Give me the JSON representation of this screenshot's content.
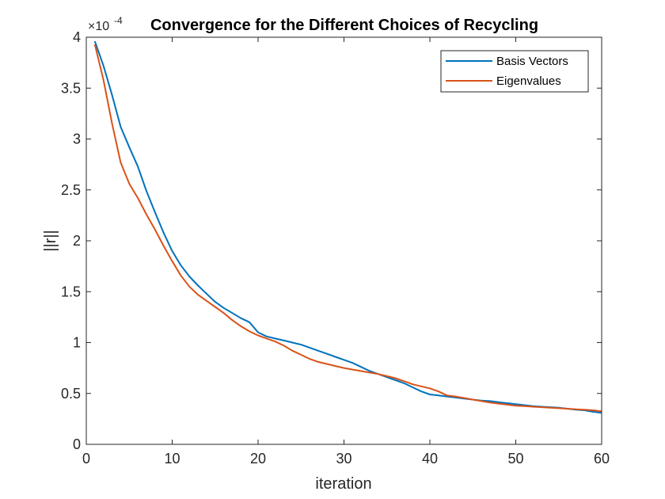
{
  "chart_data": {
    "type": "line",
    "title": "Convergence for the Different Choices of Recycling",
    "xlabel": "iteration",
    "ylabel": "||r||",
    "multiplier": {
      "base": "×10",
      "exponent": "-4"
    },
    "xlim": [
      0,
      60
    ],
    "ylim": [
      0,
      4
    ],
    "xticks": [
      0,
      10,
      20,
      30,
      40,
      50,
      60
    ],
    "yticks": [
      0,
      0.5,
      1,
      1.5,
      2,
      2.5,
      3,
      3.5,
      4
    ],
    "xtick_labels": [
      "0",
      "10",
      "20",
      "30",
      "40",
      "50",
      "60"
    ],
    "ytick_labels": [
      "0",
      "0.5",
      "1",
      "1.5",
      "2",
      "2.5",
      "3",
      "3.5",
      "4"
    ],
    "grid": false,
    "legend_position": "top-right",
    "series": [
      {
        "name": "Basis Vectors",
        "color": "#0072BD",
        "points": [
          [
            1,
            3.96
          ],
          [
            2,
            3.72
          ],
          [
            3,
            3.43
          ],
          [
            4,
            3.12
          ],
          [
            5,
            2.92
          ],
          [
            6,
            2.73
          ],
          [
            7,
            2.49
          ],
          [
            8,
            2.28
          ],
          [
            9,
            2.08
          ],
          [
            10,
            1.9
          ],
          [
            11,
            1.76
          ],
          [
            12,
            1.65
          ],
          [
            13,
            1.56
          ],
          [
            14,
            1.48
          ],
          [
            15,
            1.4
          ],
          [
            16,
            1.34
          ],
          [
            17,
            1.29
          ],
          [
            18,
            1.24
          ],
          [
            19,
            1.2
          ],
          [
            20,
            1.1
          ],
          [
            21,
            1.06
          ],
          [
            22,
            1.04
          ],
          [
            23,
            1.02
          ],
          [
            24,
            1.0
          ],
          [
            25,
            0.98
          ],
          [
            26,
            0.95
          ],
          [
            27,
            0.92
          ],
          [
            28,
            0.89
          ],
          [
            29,
            0.86
          ],
          [
            30,
            0.83
          ],
          [
            31,
            0.8
          ],
          [
            32,
            0.76
          ],
          [
            33,
            0.72
          ],
          [
            34,
            0.69
          ],
          [
            35,
            0.66
          ],
          [
            36,
            0.63
          ],
          [
            37,
            0.6
          ],
          [
            38,
            0.56
          ],
          [
            39,
            0.52
          ],
          [
            40,
            0.49
          ],
          [
            41,
            0.48
          ],
          [
            42,
            0.47
          ],
          [
            43,
            0.46
          ],
          [
            44,
            0.45
          ],
          [
            45,
            0.44
          ],
          [
            46,
            0.43
          ],
          [
            47,
            0.425
          ],
          [
            48,
            0.415
          ],
          [
            49,
            0.405
          ],
          [
            50,
            0.395
          ],
          [
            51,
            0.385
          ],
          [
            52,
            0.375
          ],
          [
            53,
            0.37
          ],
          [
            54,
            0.365
          ],
          [
            55,
            0.36
          ],
          [
            56,
            0.35
          ],
          [
            57,
            0.34
          ],
          [
            58,
            0.335
          ],
          [
            59,
            0.32
          ],
          [
            60,
            0.31
          ]
        ]
      },
      {
        "name": "Eigenvalues",
        "color": "#D95319",
        "points": [
          [
            1,
            3.93
          ],
          [
            2,
            3.58
          ],
          [
            3,
            3.15
          ],
          [
            4,
            2.77
          ],
          [
            5,
            2.56
          ],
          [
            6,
            2.42
          ],
          [
            7,
            2.26
          ],
          [
            8,
            2.11
          ],
          [
            9,
            1.95
          ],
          [
            10,
            1.8
          ],
          [
            11,
            1.66
          ],
          [
            12,
            1.55
          ],
          [
            13,
            1.47
          ],
          [
            14,
            1.41
          ],
          [
            15,
            1.35
          ],
          [
            16,
            1.29
          ],
          [
            17,
            1.22
          ],
          [
            18,
            1.16
          ],
          [
            19,
            1.11
          ],
          [
            20,
            1.07
          ],
          [
            21,
            1.04
          ],
          [
            22,
            1.01
          ],
          [
            23,
            0.97
          ],
          [
            24,
            0.92
          ],
          [
            25,
            0.88
          ],
          [
            26,
            0.84
          ],
          [
            27,
            0.81
          ],
          [
            28,
            0.79
          ],
          [
            29,
            0.77
          ],
          [
            30,
            0.75
          ],
          [
            31,
            0.735
          ],
          [
            32,
            0.72
          ],
          [
            33,
            0.705
          ],
          [
            34,
            0.69
          ],
          [
            35,
            0.67
          ],
          [
            36,
            0.65
          ],
          [
            37,
            0.62
          ],
          [
            38,
            0.59
          ],
          [
            39,
            0.57
          ],
          [
            40,
            0.55
          ],
          [
            41,
            0.52
          ],
          [
            42,
            0.48
          ],
          [
            43,
            0.47
          ],
          [
            44,
            0.455
          ],
          [
            45,
            0.44
          ],
          [
            46,
            0.425
          ],
          [
            47,
            0.41
          ],
          [
            48,
            0.4
          ],
          [
            49,
            0.39
          ],
          [
            50,
            0.38
          ],
          [
            51,
            0.375
          ],
          [
            52,
            0.37
          ],
          [
            53,
            0.365
          ],
          [
            54,
            0.36
          ],
          [
            55,
            0.355
          ],
          [
            56,
            0.35
          ],
          [
            57,
            0.345
          ],
          [
            58,
            0.34
          ],
          [
            59,
            0.335
          ],
          [
            60,
            0.325
          ]
        ]
      }
    ]
  }
}
